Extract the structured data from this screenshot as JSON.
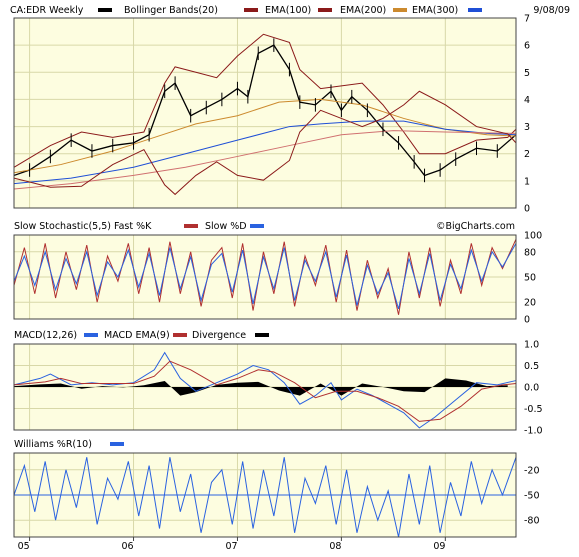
{
  "header": {
    "symbol_label": "CA:EDR Weekly",
    "bb_label": "Bollinger Bands(20)",
    "ema100_label": "EMA(100)",
    "ema200_label": "EMA(200)",
    "ema300_label": "EMA(300)",
    "date": "9/08/09"
  },
  "watermark": "©BigCharts.com",
  "colors": {
    "panel_bg": "#fdfde0",
    "grid": "#d8d8a8",
    "price": "#000000",
    "bollinger": "#8b1a1a",
    "ema100": "#cc8a2e",
    "ema200": "#1f4fd6",
    "ema300": "#d07070",
    "stoch_fast": "#b03030",
    "stoch_slow": "#2a62e0",
    "macd": "#2a62e0",
    "macd_signal": "#b03030",
    "divergence": "#000000",
    "williams": "#2a62e0"
  },
  "legend_swatches": {
    "price": "#000000",
    "bollinger": "#8b1a1a",
    "ema100": "#cc8a2e",
    "ema200": "#1f4fd6",
    "ema300": "#d07070"
  },
  "x_axis": {
    "ticks": [
      "05",
      "06",
      "07",
      "08",
      "09"
    ]
  },
  "chart_data": [
    {
      "type": "line",
      "series": [
        {
          "name": "CA:EDR Weekly",
          "x": [
            2004.85,
            2005.0,
            2005.2,
            2005.4,
            2005.6,
            2005.8,
            2006.0,
            2006.15,
            2006.3,
            2006.4,
            2006.55,
            2006.7,
            2006.85,
            2007.0,
            2007.1,
            2007.2,
            2007.35,
            2007.5,
            2007.6,
            2007.75,
            2007.9,
            2008.0,
            2008.1,
            2008.25,
            2008.4,
            2008.55,
            2008.7,
            2008.8,
            2008.95,
            2009.1,
            2009.3,
            2009.5,
            2009.68
          ],
          "y": [
            1.2,
            1.4,
            1.9,
            2.5,
            2.1,
            2.3,
            2.4,
            2.7,
            4.3,
            4.6,
            3.4,
            3.7,
            4.0,
            4.4,
            4.1,
            5.7,
            6.0,
            5.1,
            3.9,
            3.8,
            4.3,
            3.6,
            4.1,
            3.6,
            2.9,
            2.4,
            1.7,
            1.2,
            1.4,
            1.8,
            2.2,
            2.1,
            2.7
          ]
        },
        {
          "name": "Bollinger Bands(20)",
          "x": [
            2004.85,
            2005.2,
            2005.5,
            2005.8,
            2006.1,
            2006.3,
            2006.4,
            2006.6,
            2006.8,
            2007.0,
            2007.25,
            2007.5,
            2007.6,
            2007.8,
            2008.0,
            2008.2,
            2008.4,
            2008.6,
            2008.75,
            2009.0,
            2009.3,
            2009.6,
            2009.68
          ],
          "y": [
            1.5,
            2.3,
            2.8,
            2.6,
            2.8,
            4.6,
            5.2,
            5.0,
            4.8,
            5.6,
            6.4,
            6.1,
            5.1,
            4.4,
            4.5,
            4.6,
            3.8,
            2.8,
            2.0,
            2.0,
            2.5,
            2.6,
            2.9
          ]
        },
        {
          "name": "EMA(100)",
          "x": [
            2004.85,
            2005.3,
            2005.8,
            2006.2,
            2006.6,
            2007.0,
            2007.4,
            2007.8,
            2008.2,
            2008.6,
            2009.0,
            2009.4,
            2009.68
          ],
          "y": [
            1.3,
            1.6,
            2.1,
            2.6,
            3.1,
            3.4,
            3.9,
            4.0,
            3.8,
            3.3,
            2.9,
            2.7,
            2.65
          ]
        },
        {
          "name": "EMA(200)",
          "x": [
            2004.85,
            2005.4,
            2006.0,
            2006.5,
            2007.0,
            2007.5,
            2007.8,
            2008.2,
            2008.6,
            2009.0,
            2009.4,
            2009.68
          ],
          "y": [
            0.9,
            1.1,
            1.5,
            2.0,
            2.5,
            3.0,
            3.1,
            3.2,
            3.2,
            2.9,
            2.75,
            2.7
          ]
        },
        {
          "name": "EMA(300)",
          "x": [
            2004.85,
            2005.4,
            2006.0,
            2006.5,
            2007.0,
            2007.5,
            2008.0,
            2008.5,
            2009.0,
            2009.68
          ],
          "y": [
            0.7,
            0.9,
            1.2,
            1.5,
            1.9,
            2.3,
            2.7,
            2.85,
            2.8,
            2.75
          ]
        }
      ],
      "ylim": [
        0,
        7
      ],
      "yticks": [
        0,
        1,
        2,
        3,
        4,
        5,
        6,
        7
      ]
    },
    {
      "type": "line",
      "title": "Slow Stochastic(5,5) Fast %K",
      "series_labels": [
        "Slow %D"
      ],
      "series": [
        {
          "name": "Fast %K",
          "x": [
            2004.85,
            2004.95,
            2005.05,
            2005.15,
            2005.25,
            2005.35,
            2005.45,
            2005.55,
            2005.65,
            2005.75,
            2005.85,
            2005.95,
            2006.05,
            2006.15,
            2006.25,
            2006.35,
            2006.45,
            2006.55,
            2006.65,
            2006.75,
            2006.85,
            2006.95,
            2007.05,
            2007.15,
            2007.25,
            2007.35,
            2007.45,
            2007.55,
            2007.65,
            2007.75,
            2007.85,
            2007.95,
            2008.05,
            2008.15,
            2008.25,
            2008.35,
            2008.45,
            2008.55,
            2008.65,
            2008.75,
            2008.85,
            2008.95,
            2009.05,
            2009.15,
            2009.25,
            2009.35,
            2009.45,
            2009.55,
            2009.68
          ],
          "y": [
            40,
            85,
            30,
            90,
            25,
            80,
            35,
            88,
            20,
            75,
            45,
            90,
            30,
            85,
            20,
            92,
            30,
            80,
            15,
            70,
            85,
            25,
            90,
            10,
            80,
            30,
            92,
            15,
            75,
            40,
            88,
            20,
            82,
            10,
            70,
            25,
            60,
            5,
            80,
            25,
            85,
            15,
            70,
            30,
            90,
            40,
            85,
            60,
            95
          ]
        },
        {
          "name": "Slow %D",
          "x": [
            2004.85,
            2004.95,
            2005.05,
            2005.15,
            2005.25,
            2005.35,
            2005.45,
            2005.55,
            2005.65,
            2005.75,
            2005.85,
            2005.95,
            2006.05,
            2006.15,
            2006.25,
            2006.35,
            2006.45,
            2006.55,
            2006.65,
            2006.75,
            2006.85,
            2006.95,
            2007.05,
            2007.15,
            2007.25,
            2007.35,
            2007.45,
            2007.55,
            2007.65,
            2007.75,
            2007.85,
            2007.95,
            2008.05,
            2008.15,
            2008.25,
            2008.35,
            2008.45,
            2008.55,
            2008.65,
            2008.75,
            2008.85,
            2008.95,
            2009.05,
            2009.15,
            2009.25,
            2009.35,
            2009.45,
            2009.55,
            2009.68
          ],
          "y": [
            45,
            75,
            40,
            80,
            35,
            72,
            42,
            80,
            28,
            68,
            50,
            82,
            38,
            78,
            28,
            85,
            36,
            74,
            22,
            65,
            78,
            32,
            82,
            18,
            74,
            36,
            85,
            22,
            70,
            45,
            80,
            26,
            76,
            16,
            64,
            30,
            55,
            12,
            72,
            30,
            78,
            22,
            65,
            36,
            82,
            45,
            80,
            62,
            90
          ]
        }
      ],
      "ylim": [
        0,
        100
      ],
      "yticks": [
        0,
        20,
        50,
        80,
        100
      ]
    },
    {
      "type": "line",
      "title": "MACD(12,26)",
      "series_labels": [
        "MACD EMA(9)",
        "Divergence"
      ],
      "series": [
        {
          "name": "MACD",
          "x": [
            2004.85,
            2005.1,
            2005.2,
            2005.4,
            2005.6,
            2005.8,
            2006.0,
            2006.2,
            2006.3,
            2006.45,
            2006.6,
            2006.8,
            2007.0,
            2007.15,
            2007.3,
            2007.45,
            2007.6,
            2007.75,
            2007.9,
            2008.0,
            2008.15,
            2008.3,
            2008.45,
            2008.6,
            2008.75,
            2008.9,
            2009.1,
            2009.3,
            2009.5,
            2009.68
          ],
          "y": [
            0.05,
            0.2,
            0.3,
            0.05,
            0.1,
            0.05,
            0.1,
            0.4,
            0.8,
            0.2,
            -0.1,
            0.1,
            0.3,
            0.5,
            0.4,
            0.1,
            -0.4,
            -0.2,
            0.1,
            -0.3,
            -0.05,
            -0.2,
            -0.4,
            -0.6,
            -0.95,
            -0.7,
            -0.3,
            0.1,
            0.05,
            0.15
          ]
        },
        {
          "name": "MACD EMA(9)",
          "x": [
            2004.85,
            2005.15,
            2005.3,
            2005.5,
            2005.7,
            2006.0,
            2006.2,
            2006.35,
            2006.55,
            2006.8,
            2007.0,
            2007.2,
            2007.35,
            2007.55,
            2007.75,
            2007.95,
            2008.15,
            2008.35,
            2008.55,
            2008.75,
            2008.95,
            2009.15,
            2009.35,
            2009.55,
            2009.68
          ],
          "y": [
            0.05,
            0.12,
            0.2,
            0.08,
            0.08,
            0.08,
            0.25,
            0.6,
            0.4,
            0.05,
            0.2,
            0.4,
            0.35,
            0.1,
            -0.25,
            -0.1,
            -0.1,
            -0.25,
            -0.45,
            -0.8,
            -0.75,
            -0.45,
            -0.05,
            0.05,
            0.08
          ]
        },
        {
          "name": "Divergence",
          "x": [
            2004.85,
            2005.1,
            2005.3,
            2005.5,
            2005.7,
            2005.9,
            2006.1,
            2006.3,
            2006.45,
            2006.6,
            2006.8,
            2007.0,
            2007.2,
            2007.4,
            2007.6,
            2007.8,
            2008.0,
            2008.2,
            2008.4,
            2008.6,
            2008.8,
            2009.0,
            2009.2,
            2009.4,
            2009.6
          ],
          "y": [
            0.02,
            0.06,
            0.08,
            -0.04,
            0.02,
            -0.01,
            0.04,
            0.14,
            -0.2,
            -0.12,
            0.05,
            0.1,
            0.12,
            -0.08,
            -0.2,
            0.08,
            -0.2,
            0.08,
            0.0,
            -0.1,
            -0.12,
            0.2,
            0.15,
            0.02,
            0.04
          ]
        }
      ],
      "ylim": [
        -1.0,
        1.0
      ],
      "yticks": [
        1.0,
        0.5,
        0.0,
        -0.5,
        -1.0
      ]
    },
    {
      "type": "line",
      "title": "Williams %R(10)",
      "series": [
        {
          "name": "Williams %R(10)",
          "x": [
            2004.85,
            2004.95,
            2005.05,
            2005.15,
            2005.25,
            2005.35,
            2005.45,
            2005.55,
            2005.65,
            2005.75,
            2005.85,
            2005.95,
            2006.05,
            2006.15,
            2006.25,
            2006.35,
            2006.45,
            2006.55,
            2006.65,
            2006.75,
            2006.85,
            2006.95,
            2007.05,
            2007.15,
            2007.25,
            2007.35,
            2007.45,
            2007.55,
            2007.65,
            2007.75,
            2007.85,
            2007.95,
            2008.05,
            2008.15,
            2008.25,
            2008.35,
            2008.45,
            2008.55,
            2008.65,
            2008.75,
            2008.85,
            2008.95,
            2009.05,
            2009.15,
            2009.25,
            2009.35,
            2009.45,
            2009.55,
            2009.68
          ],
          "y": [
            -50,
            -15,
            -70,
            -10,
            -80,
            -20,
            -65,
            -5,
            -85,
            -30,
            -55,
            -10,
            -75,
            -15,
            -90,
            -5,
            -70,
            -25,
            -95,
            -35,
            -20,
            -85,
            -10,
            -90,
            -20,
            -75,
            -5,
            -95,
            -30,
            -60,
            -15,
            -85,
            -20,
            -95,
            -40,
            -80,
            -45,
            -100,
            -25,
            -85,
            -15,
            -95,
            -35,
            -75,
            -10,
            -60,
            -20,
            -50,
            -5
          ]
        }
      ],
      "ylim": [
        -100,
        0
      ],
      "yticks": [
        -20,
        -50,
        -80
      ]
    }
  ]
}
